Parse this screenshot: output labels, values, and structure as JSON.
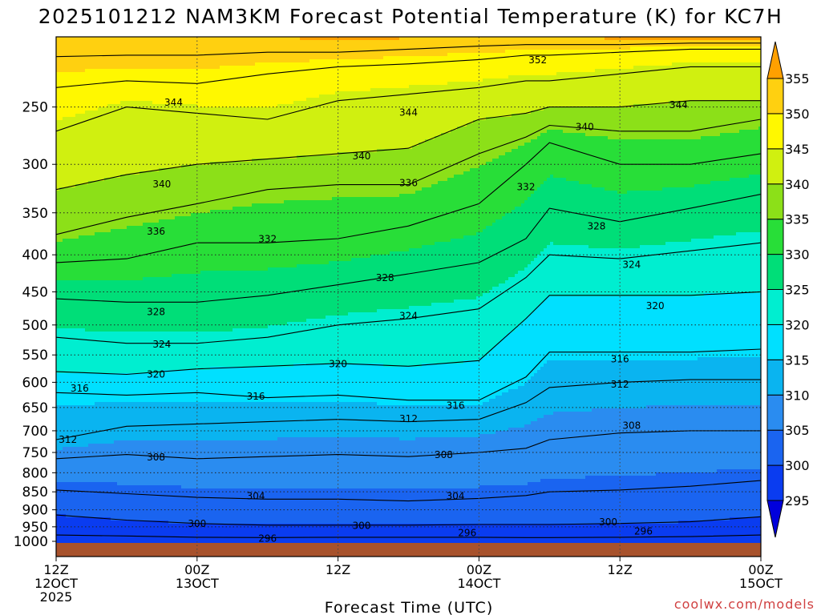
{
  "chart_data": {
    "type": "heatmap",
    "title": "2025101212 NAM3KM Forecast Potential Temperature (K) for KC7H",
    "xlabel": "Forecast Time (UTC)",
    "ylabel": "",
    "credit": "coolwx.com/models",
    "y_scale": "log-pressure",
    "y_reversed": true,
    "y_range_hpa": [
      1000,
      200
    ],
    "y_ticks": [
      250,
      300,
      350,
      400,
      450,
      500,
      550,
      600,
      650,
      700,
      750,
      800,
      850,
      900,
      950,
      1000
    ],
    "x_range_hours": [
      0,
      60
    ],
    "x_ticks": [
      {
        "hour": 0,
        "lines": [
          "12Z",
          "12OCT",
          "2025"
        ]
      },
      {
        "hour": 12,
        "lines": [
          "00Z",
          "13OCT"
        ]
      },
      {
        "hour": 24,
        "lines": [
          "12Z"
        ]
      },
      {
        "hour": 36,
        "lines": [
          "00Z",
          "14OCT"
        ]
      },
      {
        "hour": 48,
        "lines": [
          "12Z"
        ]
      },
      {
        "hour": 60,
        "lines": [
          "00Z",
          "15OCT"
        ]
      }
    ],
    "grid": true,
    "colorbar": {
      "levels": [
        295,
        300,
        305,
        310,
        315,
        320,
        325,
        330,
        335,
        340,
        345,
        350,
        355
      ],
      "colors": [
        "#0000dc",
        "#0a3cf0",
        "#1a64f0",
        "#2a8cf0",
        "#0ab4f0",
        "#00e0ff",
        "#00eed0",
        "#00de78",
        "#28de38",
        "#8ce018",
        "#d0f010",
        "#fff800",
        "#ffd010",
        "#ffa000"
      ],
      "extend": "both"
    },
    "contour_interval": 4,
    "time_hours": [
      0,
      6,
      12,
      18,
      24,
      30,
      36,
      40,
      42,
      48,
      54,
      60
    ],
    "isentropes": [
      {
        "theta": 296,
        "pressure": [
          975,
          978,
          982,
          983,
          982,
          982,
          982,
          983,
          983,
          982,
          980,
          975
        ]
      },
      {
        "theta": 300,
        "pressure": [
          915,
          930,
          940,
          945,
          945,
          945,
          943,
          943,
          943,
          940,
          935,
          920
        ]
      },
      {
        "theta": 304,
        "pressure": [
          845,
          855,
          865,
          870,
          870,
          875,
          868,
          860,
          850,
          845,
          835,
          820
        ]
      },
      {
        "theta": 308,
        "pressure": [
          765,
          755,
          765,
          760,
          755,
          760,
          750,
          740,
          720,
          705,
          700,
          700
        ]
      },
      {
        "theta": 312,
        "pressure": [
          720,
          690,
          685,
          680,
          675,
          680,
          675,
          640,
          610,
          600,
          595,
          595
        ]
      },
      {
        "theta": 316,
        "pressure": [
          620,
          625,
          620,
          630,
          625,
          635,
          635,
          590,
          545,
          545,
          545,
          540
        ]
      },
      {
        "theta": 320,
        "pressure": [
          580,
          585,
          575,
          570,
          565,
          570,
          560,
          490,
          455,
          455,
          455,
          450
        ]
      },
      {
        "theta": 324,
        "pressure": [
          520,
          530,
          530,
          520,
          500,
          490,
          475,
          430,
          400,
          405,
          395,
          385
        ]
      },
      {
        "theta": 328,
        "pressure": [
          460,
          465,
          465,
          455,
          440,
          425,
          410,
          380,
          345,
          360,
          345,
          330
        ]
      },
      {
        "theta": 332,
        "pressure": [
          410,
          405,
          385,
          385,
          380,
          365,
          340,
          300,
          280,
          300,
          300,
          290
        ]
      },
      {
        "theta": 336,
        "pressure": [
          375,
          355,
          340,
          325,
          320,
          320,
          290,
          275,
          265,
          270,
          270,
          260
        ]
      },
      {
        "theta": 340,
        "pressure": [
          325,
          310,
          300,
          295,
          290,
          285,
          260,
          255,
          250,
          250,
          245,
          245
        ]
      },
      {
        "theta": 344,
        "pressure": [
          270,
          250,
          255,
          260,
          245,
          240,
          235,
          230,
          230,
          225,
          220,
          220
        ]
      },
      {
        "theta": 348,
        "pressure": [
          235,
          230,
          232,
          225,
          220,
          218,
          215,
          212,
          212,
          210,
          208,
          208
        ]
      },
      {
        "theta": 352,
        "pressure": [
          213,
          212,
          212,
          210,
          210,
          208,
          206,
          205,
          205,
          205,
          204,
          204
        ]
      }
    ],
    "contour_labels": [
      {
        "text": "344",
        "hour": 10.0,
        "p": 246
      },
      {
        "text": "340",
        "hour": 9.0,
        "p": 319
      },
      {
        "text": "336",
        "hour": 8.5,
        "p": 371
      },
      {
        "text": "328",
        "hour": 8.5,
        "p": 479
      },
      {
        "text": "324",
        "hour": 9.0,
        "p": 531
      },
      {
        "text": "320",
        "hour": 8.5,
        "p": 584
      },
      {
        "text": "316",
        "hour": 2.0,
        "p": 611
      },
      {
        "text": "312",
        "hour": 1.0,
        "p": 719
      },
      {
        "text": "308",
        "hour": 8.5,
        "p": 761
      },
      {
        "text": "304",
        "hour": 17.0,
        "p": 860
      },
      {
        "text": "300",
        "hour": 12.0,
        "p": 940
      },
      {
        "text": "296",
        "hour": 18.0,
        "p": 985
      },
      {
        "text": "340",
        "hour": 26.0,
        "p": 292
      },
      {
        "text": "336",
        "hour": 30.0,
        "p": 318
      },
      {
        "text": "332",
        "hour": 18.0,
        "p": 380
      },
      {
        "text": "328",
        "hour": 28.0,
        "p": 430
      },
      {
        "text": "324",
        "hour": 30.0,
        "p": 485
      },
      {
        "text": "320",
        "hour": 24.0,
        "p": 565
      },
      {
        "text": "316",
        "hour": 17.0,
        "p": 627
      },
      {
        "text": "312",
        "hour": 30.0,
        "p": 673
      },
      {
        "text": "308",
        "hour": 33.0,
        "p": 755
      },
      {
        "text": "304",
        "hour": 34.0,
        "p": 860
      },
      {
        "text": "300",
        "hour": 26.0,
        "p": 945
      },
      {
        "text": "296",
        "hour": 35.0,
        "p": 968
      },
      {
        "text": "344",
        "hour": 30.0,
        "p": 254
      },
      {
        "text": "352",
        "hour": 41.0,
        "p": 215
      },
      {
        "text": "340",
        "hour": 45.0,
        "p": 266
      },
      {
        "text": "332",
        "hour": 40.0,
        "p": 322
      },
      {
        "text": "328",
        "hour": 46.0,
        "p": 365
      },
      {
        "text": "324",
        "hour": 49.0,
        "p": 412
      },
      {
        "text": "320",
        "hour": 51.0,
        "p": 470
      },
      {
        "text": "316",
        "hour": 34.0,
        "p": 645
      },
      {
        "text": "316",
        "hour": 48.0,
        "p": 557
      },
      {
        "text": "312",
        "hour": 48.0,
        "p": 603
      },
      {
        "text": "308",
        "hour": 49.0,
        "p": 688
      },
      {
        "text": "300",
        "hour": 47.0,
        "p": 935
      },
      {
        "text": "296",
        "hour": 50.0,
        "p": 962
      },
      {
        "text": "344",
        "hour": 53.0,
        "p": 248
      }
    ]
  }
}
